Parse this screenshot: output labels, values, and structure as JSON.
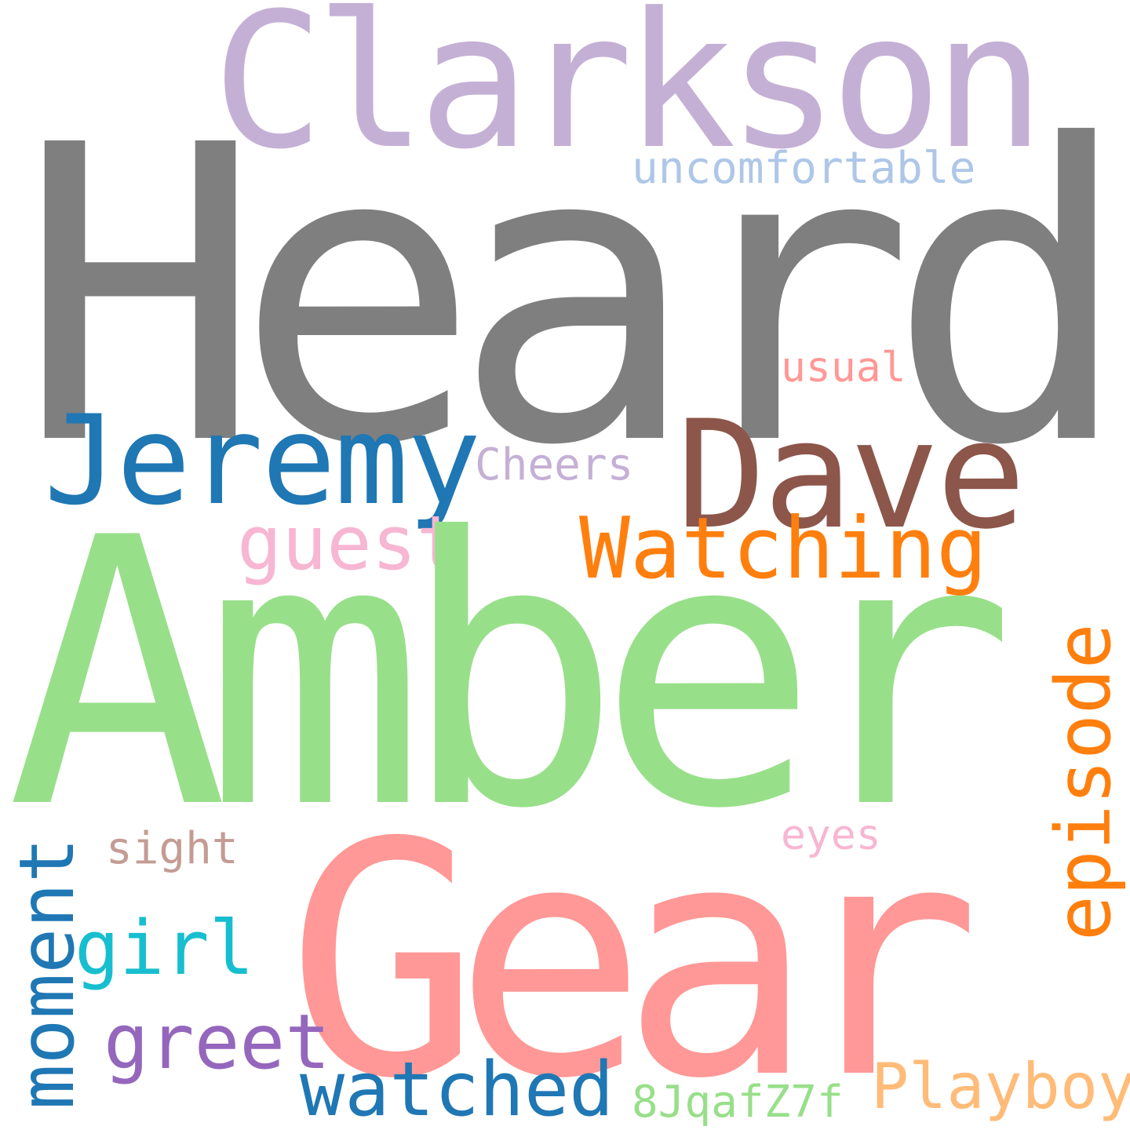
{
  "words": [
    {
      "id": "heard",
      "text": "Heard",
      "color": "#7f7f7f"
    },
    {
      "id": "clarkson",
      "text": "Clarkson",
      "color": "#c5b0d5"
    },
    {
      "id": "uncomfortable",
      "text": "uncomfortable",
      "color": "#aec7e8"
    },
    {
      "id": "usual",
      "text": "usual",
      "color": "#ff9896"
    },
    {
      "id": "jeremy",
      "text": "Jeremy",
      "color": "#1f77b4"
    },
    {
      "id": "dave",
      "text": "Dave",
      "color": "#8c564b"
    },
    {
      "id": "cheers",
      "text": "Cheers",
      "color": "#c5b0d5"
    },
    {
      "id": "guest",
      "text": "guest",
      "color": "#f7b6d2"
    },
    {
      "id": "watching",
      "text": "Watching",
      "color": "#ff7f0e"
    },
    {
      "id": "amber",
      "text": "Amber",
      "color": "#98df8a"
    },
    {
      "id": "eyes",
      "text": "eyes",
      "color": "#f7b6d2"
    },
    {
      "id": "sight",
      "text": "sight",
      "color": "#c49c94"
    },
    {
      "id": "gear",
      "text": "Gear",
      "color": "#ff9896"
    },
    {
      "id": "girl",
      "text": "girl",
      "color": "#17becf"
    },
    {
      "id": "greet",
      "text": "greet",
      "color": "#9467bd"
    },
    {
      "id": "watched",
      "text": "watched",
      "color": "#1f77b4"
    },
    {
      "id": "code",
      "text": "8JqafZ7f",
      "color": "#98df8a"
    },
    {
      "id": "playboy",
      "text": "Playboy",
      "color": "#ffbb78"
    },
    {
      "id": "episode",
      "text": "episode",
      "color": "#ff7f0e",
      "orientation": "vertical"
    },
    {
      "id": "moment",
      "text": "moment",
      "color": "#1f77b4",
      "orientation": "vertical"
    }
  ]
}
